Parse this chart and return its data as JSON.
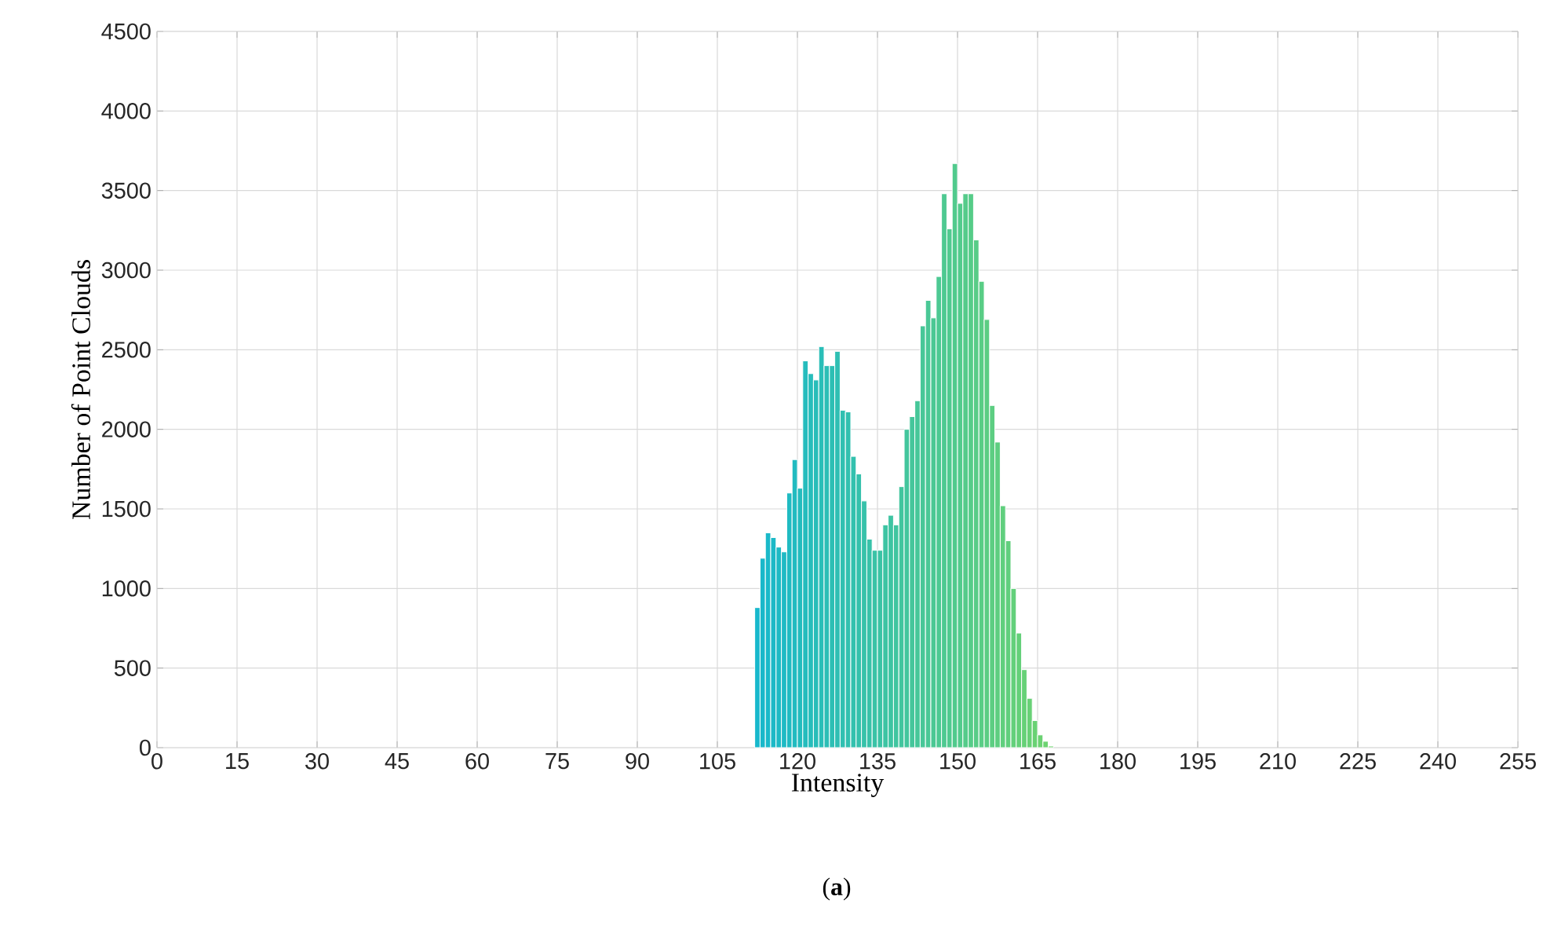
{
  "chart_data": {
    "type": "histogram",
    "xlabel": "Intensity",
    "ylabel": "Number of Point Clouds",
    "annotations": [
      "(**a**)"
    ],
    "bins": [
      112,
      113,
      114,
      115,
      116,
      117,
      118,
      119,
      120,
      121,
      122,
      123,
      124,
      125,
      126,
      127,
      128,
      129,
      130,
      131,
      132,
      133,
      134,
      135,
      136,
      137,
      138,
      139,
      140,
      141,
      142,
      143,
      144,
      145,
      146,
      147,
      148,
      149,
      150,
      151,
      152,
      153,
      154,
      155,
      156,
      157,
      158,
      159,
      160,
      161,
      162,
      163,
      164,
      165,
      166,
      167,
      168
    ],
    "values": [
      880,
      1190,
      1350,
      1320,
      1260,
      1230,
      1600,
      1810,
      1630,
      2430,
      2350,
      2310,
      2520,
      2400,
      2400,
      2490,
      2120,
      2110,
      1830,
      1720,
      1550,
      1310,
      1240,
      1240,
      1400,
      1460,
      1400,
      1640,
      2000,
      2080,
      2180,
      2650,
      2810,
      2700,
      2960,
      3480,
      3260,
      3670,
      3420,
      3480,
      3480,
      3190,
      2930,
      2690,
      2150,
      1920,
      1520,
      1300,
      1000,
      720,
      490,
      310,
      170,
      80,
      40,
      10
    ],
    "colors": [
      "#17b8cc",
      "#19b8ca",
      "#1ab9c9",
      "#1cb9c7",
      "#1dbac5",
      "#1fbac4",
      "#20bbc2",
      "#22bbc0",
      "#24bcbe",
      "#25bcbd",
      "#27bdbb",
      "#28bdb9",
      "#2abeb8",
      "#2cbeb6",
      "#2dbfb4",
      "#2fbfb3",
      "#30c0b1",
      "#32c0af",
      "#33c1ae",
      "#35c1ac",
      "#37c2aa",
      "#38c2a9",
      "#3ac3a7",
      "#3bc3a5",
      "#3dc4a3",
      "#3ec4a2",
      "#40c5a0",
      "#42c59e",
      "#43c69d",
      "#45c69b",
      "#46c799",
      "#48c798",
      "#4ac896",
      "#4bc894",
      "#4dc993",
      "#4ec991",
      "#50ca8f",
      "#51ca8d",
      "#53cb8c",
      "#55cb8a",
      "#56cc88",
      "#58cc87",
      "#59cd85",
      "#5bcd83",
      "#5dce82",
      "#5ece80",
      "#60cf7e",
      "#61cf7d",
      "#63d07b",
      "#64d079",
      "#66d177",
      "#68d176",
      "#69d274",
      "#6bd272",
      "#6cd371",
      "#6ed36f"
    ],
    "xlim": [
      0,
      255
    ],
    "ylim": [
      0,
      4500
    ],
    "xticks": [
      0,
      15,
      30,
      45,
      60,
      75,
      90,
      105,
      120,
      135,
      150,
      165,
      180,
      195,
      210,
      225,
      240,
      255
    ],
    "yticks": [
      0,
      500,
      1000,
      1500,
      2000,
      2500,
      3000,
      3500,
      4000,
      4500
    ],
    "grid": true
  }
}
